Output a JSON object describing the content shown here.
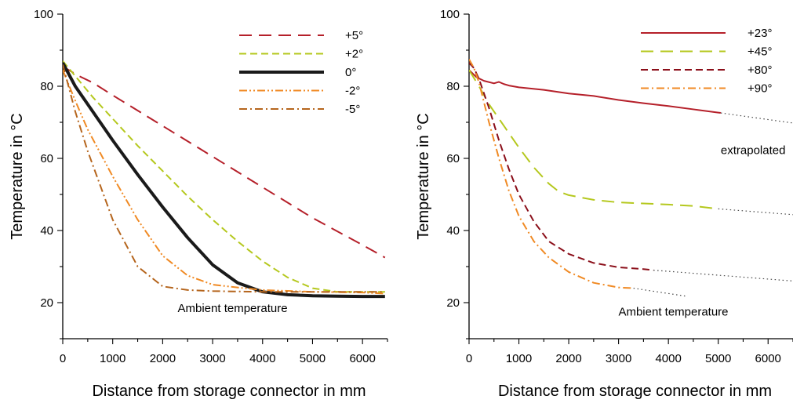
{
  "chart_data": [
    {
      "type": "line",
      "xlabel": "Distance from storage connector in mm",
      "ylabel": "Temperature in °C",
      "xlim": [
        0,
        6500
      ],
      "ylim": [
        10,
        100
      ],
      "xticks": [
        0,
        1000,
        2000,
        3000,
        4000,
        5000,
        6000
      ],
      "yticks": [
        20,
        40,
        60,
        80,
        100
      ],
      "legend_position": "top-right",
      "annotations": [
        {
          "text": "Ambient temperature",
          "x": 3400,
          "y": 18.5
        }
      ],
      "series": [
        {
          "name": "+5°",
          "color": "#b5202a",
          "dash": "long-dash",
          "width": 2,
          "x": [
            0,
            300,
            600,
            1000,
            2000,
            3000,
            4000,
            5000,
            6000,
            6450
          ],
          "y": [
            85.5,
            83,
            81,
            77.5,
            69,
            60.5,
            52,
            43.5,
            36,
            32.5
          ]
        },
        {
          "name": "+2°",
          "color": "#b5c81e",
          "dash": "dash",
          "width": 2,
          "x": [
            0,
            300,
            600,
            1000,
            1500,
            2000,
            2500,
            3000,
            3500,
            4000,
            4500,
            5000,
            5500,
            6000,
            6450
          ],
          "y": [
            87,
            82,
            77,
            71,
            63.5,
            56.5,
            49.5,
            43,
            37,
            31.5,
            27,
            24,
            23,
            23,
            23
          ]
        },
        {
          "name": "0°",
          "color": "#1a1a1a",
          "dash": "solid",
          "width": 4,
          "x": [
            0,
            250,
            500,
            1000,
            1500,
            2000,
            2500,
            3000,
            3500,
            4000,
            4500,
            5000,
            5500,
            6000,
            6450
          ],
          "y": [
            86.5,
            80,
            75,
            65,
            55.5,
            46.5,
            38,
            30.5,
            25.5,
            23,
            22.2,
            21.9,
            21.8,
            21.7,
            21.7
          ]
        },
        {
          "name": "-2°",
          "color": "#f08a24",
          "dash": "dash-dot-dot",
          "width": 2,
          "x": [
            0,
            250,
            500,
            1000,
            1500,
            2000,
            2500,
            3000,
            3500,
            4000,
            5000,
            6000,
            6450
          ],
          "y": [
            84.5,
            76,
            68,
            55,
            43,
            33,
            27.5,
            25,
            24.2,
            23.5,
            23,
            22.8,
            22.5
          ]
        },
        {
          "name": "-5°",
          "color": "#b5651d",
          "dash": "dash-dot",
          "width": 2,
          "x": [
            0,
            250,
            500,
            1000,
            1500,
            2000,
            2500,
            3000,
            4000,
            5000,
            6000,
            6450
          ],
          "y": [
            86,
            73,
            62,
            43,
            30,
            24.5,
            23.5,
            23.2,
            23,
            23,
            23,
            23
          ]
        }
      ]
    },
    {
      "type": "line",
      "xlabel": "Distance from storage connector in mm",
      "ylabel": "Temperature in °C",
      "xlim": [
        0,
        6500
      ],
      "ylim": [
        10,
        100
      ],
      "xticks": [
        0,
        1000,
        2000,
        3000,
        4000,
        5000,
        6000
      ],
      "yticks": [
        20,
        40,
        60,
        80,
        100
      ],
      "legend_position": "top-right",
      "annotations": [
        {
          "text": "Ambient temperature",
          "x": 4100,
          "y": 17.5
        },
        {
          "text": "extrapolated",
          "x": 5700,
          "y": 62.3,
          "color": "#ec5a28"
        }
      ],
      "series": [
        {
          "name": "+23°",
          "color": "#b5202a",
          "dash": "solid",
          "width": 2,
          "x": [
            0,
            150,
            300,
            500,
            600,
            700,
            800,
            1000,
            1500,
            2000,
            2500,
            3000,
            3500,
            4000,
            4500,
            5000,
            5050
          ],
          "y": [
            84.5,
            82.5,
            81.5,
            80.8,
            81.2,
            80.6,
            80.2,
            79.7,
            79,
            78,
            77.3,
            76.2,
            75.3,
            74.5,
            73.6,
            72.7,
            72.6
          ]
        },
        {
          "name": "+45°",
          "color": "#b5c81e",
          "dash": "long-dash",
          "width": 2,
          "x": [
            0,
            200,
            400,
            700,
            1000,
            1300,
            1600,
            1800,
            2000,
            2500,
            3000,
            3500,
            4000,
            4500,
            5000
          ],
          "y": [
            84.5,
            80,
            75,
            69,
            63,
            57.5,
            53,
            50.8,
            49.8,
            48.5,
            47.8,
            47.5,
            47.2,
            46.8,
            46
          ]
        },
        {
          "name": "+80°",
          "color": "#8b0f1a",
          "dash": "dash",
          "width": 2,
          "x": [
            0,
            100,
            200,
            400,
            600,
            800,
            1000,
            1300,
            1600,
            2000,
            2500,
            3000,
            3500,
            3700
          ],
          "y": [
            86.5,
            85,
            82,
            74,
            65,
            57,
            50,
            42.5,
            37,
            33.5,
            31,
            29.8,
            29.3,
            29
          ]
        },
        {
          "name": "+90°",
          "color": "#f08a24",
          "dash": "dash-dot",
          "width": 2,
          "x": [
            0,
            100,
            200,
            400,
            600,
            800,
            1000,
            1300,
            1600,
            2000,
            2500,
            3000,
            3300
          ],
          "y": [
            87.5,
            85,
            81,
            70,
            60,
            51,
            44,
            37,
            32.5,
            28.5,
            25.5,
            24.2,
            24
          ]
        }
      ],
      "extrapolation": [
        {
          "color": "#444444",
          "x": [
            5050,
            6500
          ],
          "y": [
            72.6,
            69.8
          ]
        },
        {
          "color": "#444444",
          "x": [
            5000,
            6500
          ],
          "y": [
            46,
            44.4
          ]
        },
        {
          "color": "#444444",
          "x": [
            3700,
            6500
          ],
          "y": [
            29,
            26
          ]
        },
        {
          "color": "#444444",
          "x": [
            3300,
            4350
          ],
          "y": [
            24,
            21.8
          ]
        }
      ]
    }
  ]
}
